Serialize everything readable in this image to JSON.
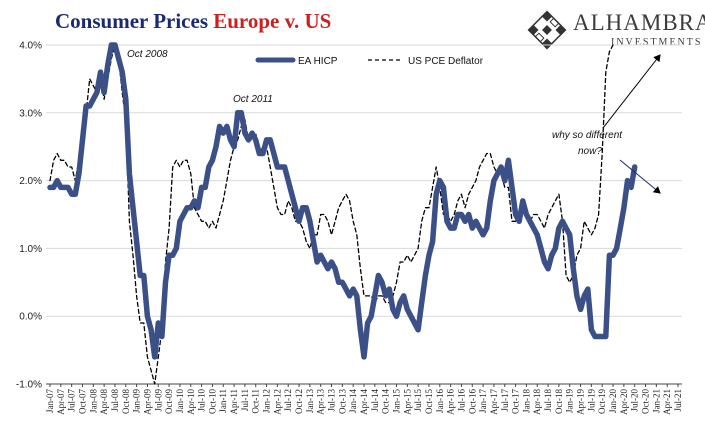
{
  "header": {
    "title_part1": "Consumer Prices ",
    "title_part2": "Europe v. US"
  },
  "logo": {
    "brand": "ALHAMBRA",
    "sub": "INVESTMENTS"
  },
  "colors": {
    "eahicp": "#3a5087",
    "uspce": "#000000",
    "title_blue": "#1a2a6e",
    "title_red": "#cc1f1f"
  },
  "chart_data": {
    "type": "line",
    "title": "Consumer Prices Europe v. US",
    "ylim": [
      -1.0,
      4.0
    ],
    "y_ticks": [
      "4.0%",
      "3.0%",
      "2.0%",
      "1.0%",
      "0.0%",
      "-1.0%"
    ],
    "y_tick_values": [
      4,
      3,
      2,
      1,
      0,
      -1
    ],
    "grid": true,
    "legend_position": "top-center",
    "x_ticks": [
      "Jan-07",
      "Apr-07",
      "Jul-07",
      "Oct-07",
      "Jan-08",
      "Apr-08",
      "Jul-08",
      "Oct-08",
      "Jan-09",
      "Apr-09",
      "Jul-09",
      "Oct-09",
      "Jan-10",
      "Apr-10",
      "Jul-10",
      "Oct-10",
      "Jan-11",
      "Apr-11",
      "Jul-11",
      "Oct-11",
      "Jan-12",
      "Apr-12",
      "Jul-12",
      "Oct-12",
      "Jan-13",
      "Apr-13",
      "Jul-13",
      "Oct-13",
      "Jan-14",
      "Apr-14",
      "Jul-14",
      "Oct-14",
      "Jan-15",
      "Apr-15",
      "Jul-15",
      "Oct-15",
      "Jan-16",
      "Apr-16",
      "Jul-16",
      "Oct-16",
      "Jan-17",
      "Apr-17",
      "Jul-17",
      "Oct-17",
      "Jan-18",
      "Apr-18",
      "Jul-18",
      "Oct-18",
      "Jan-19",
      "Apr-19",
      "Jul-19",
      "Oct-19",
      "Jan-20",
      "Apr-20",
      "Jul-20",
      "Oct-20",
      "Jan-21",
      "Apr-21",
      "Jul-21"
    ],
    "series": [
      {
        "name": "EA HICP",
        "style": "solid-thick",
        "values": [
          1.9,
          1.9,
          2.0,
          1.9,
          1.9,
          1.9,
          1.8,
          1.8,
          2.1,
          2.6,
          3.1,
          3.1,
          3.2,
          3.3,
          3.6,
          3.3,
          3.7,
          4.0,
          4.0,
          3.8,
          3.6,
          3.2,
          2.1,
          1.6,
          1.1,
          0.6,
          0.6,
          0.0,
          -0.2,
          -0.6,
          -0.1,
          -0.3,
          0.5,
          0.9,
          0.9,
          1.0,
          1.4,
          1.5,
          1.6,
          1.6,
          1.7,
          1.6,
          1.9,
          1.9,
          2.2,
          2.3,
          2.5,
          2.8,
          2.7,
          2.8,
          2.6,
          2.5,
          3.0,
          3.0,
          2.7,
          2.6,
          2.7,
          2.6,
          2.4,
          2.4,
          2.6,
          2.6,
          2.4,
          2.2,
          2.2,
          2.2,
          2.0,
          1.8,
          1.6,
          1.4,
          1.6,
          1.6,
          1.4,
          1.1,
          0.8,
          0.9,
          0.8,
          0.7,
          0.8,
          0.7,
          0.5,
          0.5,
          0.4,
          0.3,
          0.4,
          0.3,
          -0.2,
          -0.6,
          -0.1,
          0.0,
          0.3,
          0.6,
          0.5,
          0.3,
          0.4,
          0.1,
          0.0,
          0.2,
          0.3,
          0.1,
          0.0,
          -0.1,
          -0.2,
          0.2,
          0.6,
          0.9,
          1.1,
          1.8,
          2.0,
          1.9,
          1.4,
          1.3,
          1.3,
          1.5,
          1.5,
          1.4,
          1.5,
          1.3,
          1.4,
          1.3,
          1.2,
          1.3,
          1.7,
          2.0,
          2.1,
          2.2,
          2.0,
          2.3,
          1.9,
          1.5,
          1.4,
          1.7,
          1.5,
          1.4,
          1.3,
          1.2,
          1.0,
          0.8,
          0.7,
          0.9,
          1.0,
          1.3,
          1.4,
          1.3,
          1.2,
          0.7,
          0.3,
          0.1,
          0.3,
          0.4,
          -0.2,
          -0.3,
          -0.3,
          -0.3,
          -0.3,
          0.9,
          0.9,
          1.0,
          1.3,
          1.6,
          2.0,
          1.9,
          2.2
        ]
      },
      {
        "name": "US PCE Deflator",
        "style": "dashed",
        "values": [
          2.0,
          2.3,
          2.4,
          2.3,
          2.3,
          2.2,
          2.2,
          2.0,
          2.3,
          2.6,
          3.0,
          3.5,
          3.4,
          3.3,
          3.5,
          3.2,
          3.5,
          3.8,
          4.0,
          3.8,
          3.3,
          2.9,
          1.4,
          0.9,
          0.3,
          -0.1,
          -0.1,
          -0.6,
          -0.8,
          -1.0,
          -0.6,
          -0.2,
          0.8,
          1.3,
          2.2,
          2.3,
          2.2,
          2.3,
          2.3,
          2.1,
          1.6,
          1.5,
          1.4,
          1.4,
          1.3,
          1.4,
          1.3,
          1.5,
          1.7,
          2.0,
          2.3,
          2.5,
          2.6,
          2.8,
          2.9,
          2.6,
          2.6,
          2.7,
          2.4,
          2.5,
          2.5,
          2.2,
          1.9,
          1.6,
          1.5,
          1.5,
          1.7,
          1.6,
          1.4,
          1.4,
          1.3,
          1.1,
          1.0,
          1.2,
          1.2,
          1.5,
          1.5,
          1.4,
          1.2,
          1.4,
          1.6,
          1.7,
          1.8,
          1.7,
          1.4,
          1.2,
          0.7,
          0.3,
          0.3,
          0.3,
          0.2,
          0.3,
          0.3,
          0.2,
          0.2,
          0.3,
          0.5,
          0.8,
          0.8,
          0.9,
          0.8,
          0.9,
          1.0,
          1.4,
          1.6,
          1.6,
          1.9,
          2.2,
          1.9,
          1.5,
          1.5,
          1.4,
          1.5,
          1.7,
          1.8,
          1.6,
          1.8,
          1.9,
          2.0,
          2.2,
          2.3,
          2.4,
          2.4,
          2.2,
          2.1,
          2.1,
          1.9,
          1.9,
          1.4,
          1.4,
          1.5,
          1.6,
          1.5,
          1.4,
          1.5,
          1.5,
          1.4,
          1.3,
          1.5,
          1.6,
          1.7,
          1.8,
          1.4,
          0.6,
          0.5,
          0.6,
          0.9,
          1.0,
          1.4,
          1.3,
          1.2,
          1.3,
          1.5,
          2.4,
          3.6,
          3.9,
          4.0
        ]
      }
    ],
    "annotations": [
      {
        "text": "Oct 2008"
      },
      {
        "text": "Oct 2011"
      },
      {
        "text": "why so different"
      },
      {
        "text": "now?"
      }
    ]
  }
}
